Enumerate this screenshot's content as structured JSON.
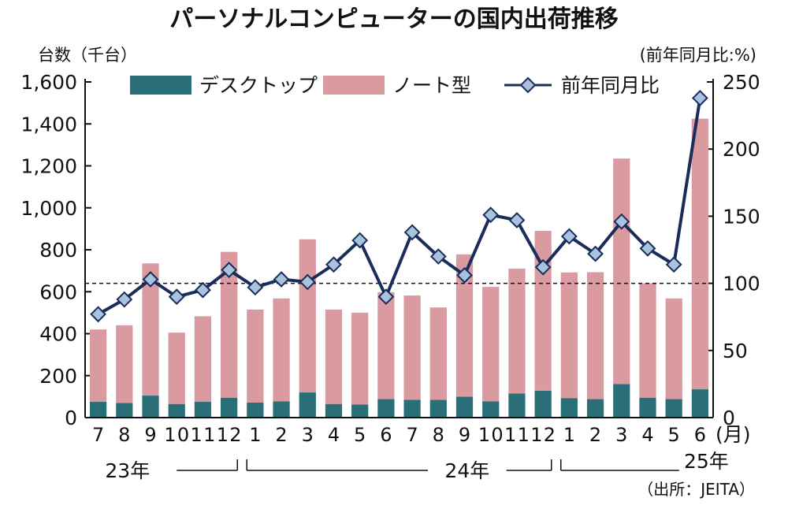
{
  "chart_data": {
    "type": "bar",
    "title": "パーソナルコンピューターの国内出荷推移",
    "left_axis_unit": "台数（千台）",
    "right_axis_unit": "(前年同月比:%)",
    "x_unit": "(月)",
    "source": "（出所：JEITA）",
    "categories": [
      "7",
      "8",
      "9",
      "10",
      "11",
      "12",
      "1",
      "2",
      "3",
      "4",
      "5",
      "6",
      "7",
      "8",
      "9",
      "10",
      "11",
      "12",
      "1",
      "2",
      "3",
      "4",
      "5",
      "6"
    ],
    "year_labels": [
      "23年",
      "24年",
      "25年"
    ],
    "series": [
      {
        "name": "デスクトップ",
        "type": "bar",
        "axis": "left",
        "color": "#2a6f78",
        "values": [
          75,
          70,
          105,
          65,
          75,
          95,
          72,
          78,
          120,
          65,
          62,
          88,
          85,
          85,
          100,
          78,
          115,
          128,
          92,
          88,
          160,
          95,
          88,
          135
        ]
      },
      {
        "name": "ノート型",
        "type": "bar",
        "axis": "left",
        "color": "#d99aa0",
        "values": [
          345,
          370,
          630,
          340,
          408,
          695,
          443,
          490,
          730,
          450,
          438,
          510,
          497,
          440,
          678,
          545,
          595,
          762,
          600,
          605,
          1075,
          545,
          480,
          1290
        ]
      },
      {
        "name": "前年同月比",
        "type": "line",
        "axis": "right",
        "color": "#1a2d5a",
        "marker_color": "#a9c3de",
        "values": [
          77,
          88,
          103,
          90,
          95,
          110,
          97,
          103,
          101,
          114,
          132,
          90,
          138,
          120,
          106,
          151,
          147,
          112,
          135,
          122,
          146,
          126,
          114,
          238
        ]
      }
    ],
    "left_ylim": [
      0,
      1600
    ],
    "left_ticks": [
      "0",
      "200",
      "400",
      "600",
      "800",
      "1,000",
      "1,200",
      "1,400",
      "1,600"
    ],
    "right_ylim": [
      0,
      250
    ],
    "right_ticks": [
      "0",
      "50",
      "100",
      "150",
      "200",
      "250"
    ],
    "reference_line": 100,
    "legend_placement": "top"
  }
}
